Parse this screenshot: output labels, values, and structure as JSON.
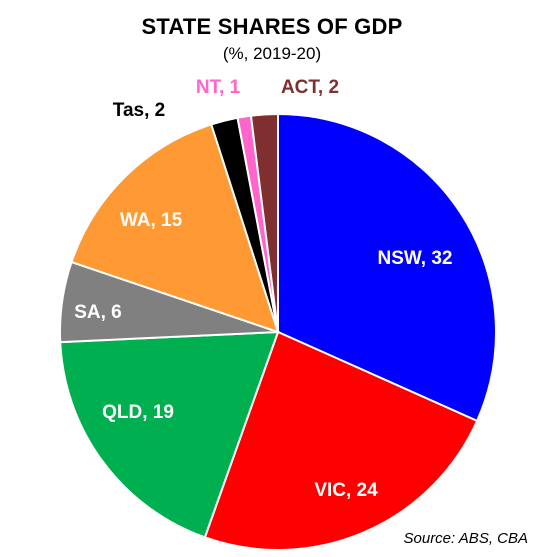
{
  "chart_data": {
    "type": "pie",
    "title": "STATE SHARES OF GDP",
    "subtitle": "(%, 2019-20)",
    "source": "Source: ABS, CBA",
    "slices": [
      {
        "label": "NSW, 32",
        "value": 32,
        "color": "#0000FF",
        "label_color": "#FFFFFF"
      },
      {
        "label": "VIC, 24",
        "value": 24,
        "color": "#FF0000",
        "label_color": "#FFFFFF"
      },
      {
        "label": "QLD, 19",
        "value": 19,
        "color": "#00B050",
        "label_color": "#FFFFFF"
      },
      {
        "label": "SA, 6",
        "value": 6,
        "color": "#808080",
        "label_color": "#FFFFFF"
      },
      {
        "label": "WA, 15",
        "value": 15,
        "color": "#FF9933",
        "label_color": "#FFFFFF"
      },
      {
        "label": "Tas, 2",
        "value": 2,
        "color": "#000000",
        "label_color": "#000000"
      },
      {
        "label": "NT, 1",
        "value": 1,
        "color": "#FF66CC",
        "label_color": "#FF66CC"
      },
      {
        "label": "ACT, 2",
        "value": 2,
        "color": "#7F2F2F",
        "label_color": "#7F2F2F"
      }
    ]
  }
}
